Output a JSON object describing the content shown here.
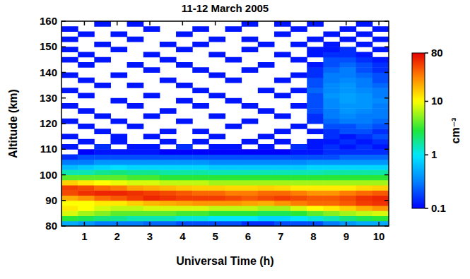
{
  "chart_data": {
    "type": "heatmap",
    "title": "11-12 March 2005",
    "x_label": "Universal Time (h)",
    "y_label": "Altitude (km)",
    "xlim": [
      0.3,
      10.3
    ],
    "xticks": [
      1,
      2,
      3,
      4,
      5,
      6,
      7,
      8,
      9,
      10
    ],
    "ylim": [
      80,
      160
    ],
    "yticks": [
      80,
      90,
      100,
      110,
      120,
      130,
      140,
      150,
      160
    ],
    "x_bins": [
      0.3,
      0.8,
      1.3,
      1.8,
      2.3,
      2.8,
      3.3,
      3.8,
      4.3,
      4.8,
      5.3,
      5.8,
      6.3,
      6.8,
      7.3,
      7.8,
      8.3,
      8.8,
      9.3,
      9.8,
      10.3
    ],
    "y_bins": [
      80,
      82,
      84,
      86,
      88,
      90,
      92,
      94,
      96,
      98,
      100,
      102,
      104,
      106,
      108,
      110,
      112,
      114,
      116,
      118,
      120,
      122,
      124,
      126,
      128,
      130,
      132,
      134,
      136,
      138,
      140,
      142,
      144,
      146,
      148,
      150,
      152,
      154,
      156,
      158,
      160
    ],
    "colorbar": {
      "range": [
        0.1,
        80
      ],
      "ticks": [
        0.1,
        1,
        10,
        80
      ],
      "label": "cm⁻³",
      "log": true
    },
    "grid": false,
    "cells": [
      [
        0.5,
        0.4,
        0.3,
        0.3,
        0.3,
        0.25,
        0.25,
        0.2,
        0.2,
        0.2,
        0.2,
        0.15,
        0.15,
        0.2,
        0.2,
        0.2,
        0.3,
        0.4,
        0.5,
        0.5
      ],
      [
        3,
        2.5,
        2,
        1.8,
        1.5,
        1.5,
        1.5,
        1.2,
        1.2,
        1,
        1,
        1,
        0.8,
        0.8,
        1,
        1.2,
        1.5,
        2,
        2.5,
        3
      ],
      [
        8,
        6,
        5,
        4,
        4,
        4,
        4,
        3.5,
        3.5,
        3,
        3,
        3,
        2.5,
        2.5,
        3,
        4,
        5,
        6,
        7,
        8
      ],
      [
        12,
        10,
        8,
        7,
        7,
        8,
        8,
        8,
        8,
        7,
        7,
        7,
        6,
        6,
        8,
        10,
        12,
        15,
        20,
        25
      ],
      [
        10,
        10,
        12,
        12,
        15,
        18,
        20,
        22,
        25,
        25,
        25,
        22,
        20,
        25,
        30,
        35,
        35,
        40,
        50,
        55
      ],
      [
        20,
        25,
        35,
        40,
        50,
        60,
        55,
        50,
        50,
        50,
        45,
        40,
        45,
        50,
        45,
        40,
        40,
        45,
        55,
        60
      ],
      [
        45,
        55,
        60,
        60,
        55,
        50,
        45,
        40,
        35,
        35,
        30,
        30,
        35,
        35,
        30,
        25,
        25,
        30,
        35,
        40
      ],
      [
        50,
        45,
        35,
        30,
        22,
        20,
        18,
        16,
        15,
        15,
        14,
        14,
        15,
        14,
        12,
        12,
        12,
        12,
        14,
        15
      ],
      [
        15,
        12,
        10,
        9,
        8,
        8,
        7,
        7,
        7,
        6,
        6,
        6,
        6,
        6,
        6,
        6,
        6,
        6,
        6,
        6
      ],
      [
        4,
        4,
        4,
        4,
        3.5,
        3.5,
        3,
        3,
        3,
        3,
        3,
        3,
        3,
        3,
        3,
        3,
        3,
        3,
        3,
        3
      ],
      [
        1.5,
        1.5,
        1.8,
        2,
        1.8,
        1.8,
        1.6,
        1.6,
        1.6,
        1.5,
        1.5,
        1.5,
        1.5,
        1.5,
        1.5,
        1.5,
        1.6,
        1.6,
        1.6,
        1.6
      ],
      [
        0.6,
        0.7,
        0.8,
        0.9,
        0.8,
        0.8,
        0.8,
        0.8,
        0.8,
        0.7,
        0.7,
        0.7,
        0.7,
        0.7,
        0.7,
        0.8,
        0.8,
        0.8,
        0.8,
        0.8
      ],
      [
        0.3,
        0.3,
        0.4,
        0.4,
        0.4,
        0.4,
        0.4,
        0.4,
        0.4,
        0.35,
        0.35,
        0.35,
        0.35,
        0.35,
        0.35,
        0.4,
        0.4,
        0.4,
        0.4,
        0.4
      ],
      [
        0.15,
        0.2,
        0.2,
        0.2,
        0.2,
        0.2,
        0.2,
        0.2,
        0.2,
        0.2,
        0.2,
        0.2,
        0.2,
        0.2,
        0.2,
        0.2,
        0.2,
        0.25,
        0.25,
        0.25
      ],
      [
        null,
        0.1,
        0.12,
        0.12,
        0.12,
        0.12,
        0.1,
        0.1,
        0.1,
        0.1,
        0.1,
        0.1,
        0.1,
        0.1,
        0.12,
        0.12,
        0.15,
        0.15,
        0.15,
        0.15
      ],
      [
        0.12,
        null,
        0.15,
        null,
        0.12,
        0.12,
        null,
        0.15,
        null,
        0.12,
        0.12,
        null,
        0.12,
        null,
        0.15,
        0.12,
        0.15,
        0.12,
        0.15,
        0.12
      ],
      [
        null,
        0.12,
        null,
        0.12,
        null,
        null,
        0.12,
        null,
        0.12,
        null,
        null,
        0.12,
        null,
        0.12,
        null,
        0.12,
        0.12,
        0.15,
        0.12,
        0.15
      ],
      [
        0.12,
        null,
        null,
        0.12,
        null,
        0.12,
        null,
        null,
        null,
        0.12,
        null,
        null,
        0.12,
        null,
        null,
        null,
        0.15,
        0.12,
        0.15,
        0.2
      ],
      [
        null,
        null,
        0.12,
        null,
        null,
        null,
        0.12,
        null,
        0.12,
        null,
        null,
        null,
        null,
        0.12,
        null,
        0.12,
        0.15,
        0.2,
        0.2,
        0.15
      ],
      [
        null,
        0.12,
        null,
        null,
        0.12,
        null,
        null,
        null,
        null,
        null,
        0.12,
        null,
        null,
        null,
        0.12,
        null,
        0.2,
        0.2,
        0.25,
        0.2
      ],
      [
        0.12,
        null,
        null,
        0.12,
        null,
        null,
        null,
        0.12,
        null,
        null,
        null,
        0.12,
        null,
        null,
        null,
        0.15,
        0.25,
        0.3,
        0.3,
        0.25
      ],
      [
        null,
        null,
        0.12,
        null,
        null,
        0.12,
        null,
        null,
        null,
        0.12,
        null,
        null,
        null,
        0.12,
        null,
        0.15,
        0.3,
        0.35,
        0.3,
        0.3
      ],
      [
        null,
        0.12,
        null,
        null,
        null,
        null,
        0.12,
        null,
        null,
        null,
        null,
        null,
        0.12,
        null,
        null,
        0.2,
        0.3,
        0.4,
        0.35,
        0.3
      ],
      [
        0.12,
        null,
        null,
        null,
        0.12,
        null,
        null,
        null,
        0.12,
        null,
        null,
        0.12,
        null,
        null,
        0.12,
        0.2,
        0.35,
        0.4,
        0.4,
        0.3
      ],
      [
        null,
        null,
        null,
        0.12,
        null,
        null,
        null,
        0.12,
        null,
        null,
        0.12,
        null,
        null,
        null,
        null,
        0.2,
        0.35,
        0.45,
        0.4,
        0.35
      ],
      [
        null,
        0.12,
        null,
        null,
        null,
        0.12,
        null,
        null,
        null,
        0.12,
        null,
        null,
        null,
        0.12,
        null,
        0.2,
        0.4,
        0.45,
        0.4,
        0.3
      ],
      [
        0.12,
        null,
        null,
        null,
        null,
        null,
        null,
        null,
        0.12,
        null,
        null,
        null,
        0.12,
        null,
        0.12,
        0.25,
        0.35,
        0.4,
        0.35,
        0.3
      ],
      [
        null,
        null,
        0.12,
        null,
        0.12,
        null,
        null,
        0.12,
        null,
        null,
        null,
        null,
        null,
        null,
        null,
        0.2,
        0.35,
        0.4,
        0.3,
        0.25
      ],
      [
        null,
        0.12,
        null,
        null,
        null,
        null,
        0.12,
        null,
        null,
        null,
        0.12,
        null,
        null,
        0.12,
        null,
        0.2,
        0.3,
        0.35,
        0.3,
        0.2
      ],
      [
        0.12,
        null,
        null,
        0.12,
        null,
        null,
        null,
        null,
        null,
        0.12,
        null,
        null,
        null,
        null,
        0.12,
        0.15,
        0.3,
        0.3,
        0.25,
        0.2
      ],
      [
        null,
        null,
        null,
        null,
        null,
        0.12,
        null,
        null,
        0.12,
        null,
        null,
        0.12,
        null,
        null,
        null,
        0.15,
        0.25,
        0.3,
        0.2,
        0.15
      ],
      [
        null,
        0.12,
        null,
        null,
        0.12,
        null,
        null,
        0.12,
        null,
        null,
        null,
        null,
        0.12,
        null,
        null,
        0.12,
        0.2,
        0.25,
        0.2,
        0.15
      ],
      [
        0.12,
        null,
        0.12,
        null,
        null,
        null,
        0.12,
        null,
        null,
        null,
        0.12,
        null,
        null,
        null,
        0.12,
        null,
        0.2,
        0.2,
        0.15,
        0.12
      ],
      [
        null,
        0.12,
        null,
        null,
        null,
        0.12,
        null,
        null,
        null,
        0.12,
        null,
        null,
        null,
        0.12,
        null,
        0.12,
        0.15,
        0.15,
        0.12,
        null
      ],
      [
        0.12,
        null,
        null,
        0.12,
        null,
        null,
        null,
        0.12,
        null,
        null,
        null,
        0.12,
        null,
        null,
        null,
        0.12,
        0.12,
        0.15,
        null,
        0.12
      ],
      [
        null,
        null,
        0.12,
        null,
        null,
        null,
        0.12,
        null,
        0.12,
        null,
        null,
        null,
        0.12,
        null,
        0.12,
        null,
        0.12,
        null,
        0.12,
        null
      ],
      [
        0.12,
        null,
        null,
        null,
        0.12,
        null,
        null,
        null,
        null,
        0.12,
        null,
        0.12,
        null,
        null,
        null,
        0.12,
        null,
        0.12,
        null,
        0.12
      ],
      [
        null,
        0.12,
        null,
        0.12,
        null,
        null,
        null,
        0.12,
        null,
        null,
        null,
        null,
        null,
        0.12,
        null,
        null,
        0.12,
        null,
        0.12,
        null
      ],
      [
        0.12,
        null,
        null,
        null,
        null,
        0.12,
        null,
        null,
        0.12,
        null,
        0.12,
        null,
        null,
        null,
        0.12,
        null,
        null,
        0.12,
        null,
        0.12
      ],
      [
        null,
        null,
        0.12,
        null,
        0.12,
        null,
        null,
        null,
        null,
        null,
        null,
        0.12,
        null,
        0.12,
        null,
        0.12,
        null,
        null,
        0.12,
        null
      ]
    ]
  }
}
